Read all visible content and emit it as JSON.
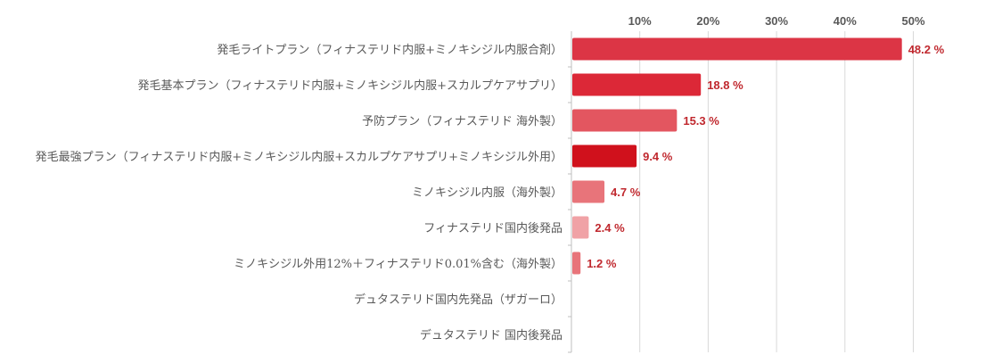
{
  "chart_data": {
    "type": "bar",
    "orientation": "horizontal",
    "title": "",
    "xlabel": "",
    "ylabel": "",
    "xlim": [
      0,
      55
    ],
    "ticks": [
      10,
      20,
      30,
      40,
      50
    ],
    "tick_labels": [
      "10%",
      "20%",
      "30%",
      "40%",
      "50%"
    ],
    "grid": true,
    "categories": [
      "発毛ライトプラン（フィナステリド内服+ミノキシジル内服合剤）",
      "発毛基本プラン（フィナステリド内服+ミノキシジル内服+スカルプケアサプリ）",
      "予防プラン（フィナステリド 海外製）",
      "発毛最強プラン（フィナステリド内服+ミノキシジル内服+スカルプケアサプリ+ミノキシジル外用）",
      "ミノキシジル内服（海外製）",
      "フィナステリド国内後発品",
      "ミノキシジル外用12%＋フィナステリド0.01%含む（海外製）",
      "デュタステリド国内先発品（ザガーロ）",
      "デュタステリド 国内後発品"
    ],
    "values": [
      48.2,
      18.8,
      15.3,
      9.4,
      4.7,
      2.4,
      1.2,
      0,
      0
    ],
    "data_labels": [
      "48.2 %",
      "18.8 %",
      "15.3 %",
      "9.4 %",
      "4.7 %",
      "2.4 %",
      "1.2 %",
      "",
      ""
    ],
    "colors": [
      "#dc3545",
      "#dc2837",
      "#e35660",
      "#d0111c",
      "#e8747a",
      "#f0a2a6",
      "#e8747a",
      "#e8747a",
      "#e8747a"
    ],
    "label_color": "#c0282e"
  }
}
